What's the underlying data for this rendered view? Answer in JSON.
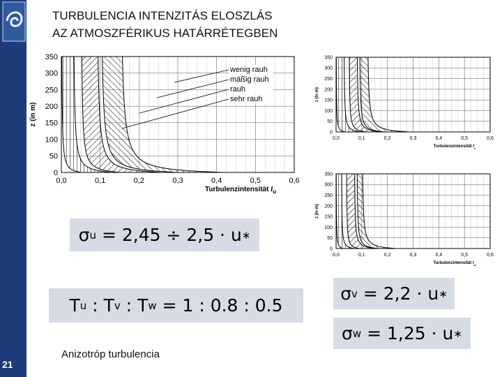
{
  "header": {
    "title_lines": [
      "TURBULENCIA INTENZITÁS ELOSZLÁS",
      "AZ ATMOSZFÉRIKUS HATÁRRÉTEGBEN"
    ]
  },
  "charts": [
    {
      "y_label": "z (in m)",
      "x_label": "Turbulenzintensität",
      "x_symbol": "I",
      "x_sub": "u",
      "xlim": [
        0,
        0.6
      ],
      "ylim": [
        0,
        350
      ],
      "xticks": [
        {
          "value": 0,
          "label": "0,0"
        },
        {
          "value": 0.1,
          "label": "0,1"
        },
        {
          "value": 0.2,
          "label": "0,2"
        },
        {
          "value": 0.3,
          "label": "0,3"
        },
        {
          "value": 0.4,
          "label": "0,4"
        },
        {
          "value": 0.5,
          "label": "0,5"
        },
        {
          "value": 0.6,
          "label": "0,6"
        }
      ],
      "yticks": [
        0,
        50,
        100,
        150,
        200,
        250,
        300,
        350
      ],
      "legend": [
        "wenig rauh",
        "mäßig rauh",
        "rauh",
        "sehr rauh"
      ]
    },
    {
      "y_label": "z (in m)",
      "x_label": "Turbulenzintensität",
      "x_symbol": "I",
      "x_sub": "v",
      "xlim": [
        0,
        0.6
      ],
      "ylim": [
        0,
        350
      ],
      "xticks": [
        {
          "value": 0,
          "label": "0,0"
        },
        {
          "value": 0.1,
          "label": "0,1"
        },
        {
          "value": 0.2,
          "label": "0,2"
        },
        {
          "value": 0.3,
          "label": "0,3"
        },
        {
          "value": 0.4,
          "label": "0,4"
        },
        {
          "value": 0.5,
          "label": "0,5"
        },
        {
          "value": 0.6,
          "label": "0,6"
        }
      ],
      "yticks": [
        0,
        50,
        100,
        150,
        200,
        250,
        300,
        350
      ]
    },
    {
      "y_label": "z (in m)",
      "x_label": "Turbulenzintensität",
      "x_symbol": "I",
      "x_sub": "w",
      "xlim": [
        0,
        0.6
      ],
      "ylim": [
        0,
        350
      ],
      "xticks": [
        {
          "value": 0,
          "label": "0,0"
        },
        {
          "value": 0.1,
          "label": "0,1"
        },
        {
          "value": 0.2,
          "label": "0,2"
        },
        {
          "value": 0.3,
          "label": "0,3"
        },
        {
          "value": 0.4,
          "label": "0,4"
        },
        {
          "value": 0.5,
          "label": "0,5"
        },
        {
          "value": 0.6,
          "label": "0,6"
        }
      ],
      "yticks": [
        0,
        50,
        100,
        150,
        200,
        250,
        300,
        350
      ]
    }
  ],
  "formulas": [
    {
      "parts": [
        {
          "text": "σ"
        },
        {
          "sub": "u"
        },
        {
          "text": " = 2,45 ÷ 2,5 · u"
        },
        {
          "sub": "∗"
        }
      ]
    },
    {
      "parts": [
        {
          "text": "T"
        },
        {
          "sub": "u"
        },
        {
          "text": " : T"
        },
        {
          "sub": "v"
        },
        {
          "text": " : T"
        },
        {
          "sub": "w"
        },
        {
          "text": " = 1 : 0.8 : 0.5"
        }
      ]
    },
    {
      "parts": [
        {
          "text": "σ"
        },
        {
          "sub": "v"
        },
        {
          "text": " = 2,2 · u"
        },
        {
          "sub": "∗"
        }
      ]
    },
    {
      "parts": [
        {
          "text": "σ"
        },
        {
          "sub": "w"
        },
        {
          "text": " = 1,25 · u"
        },
        {
          "sub": "∗"
        }
      ]
    }
  ],
  "caption": "Anizotróp turbulencia",
  "page_number": "21"
}
